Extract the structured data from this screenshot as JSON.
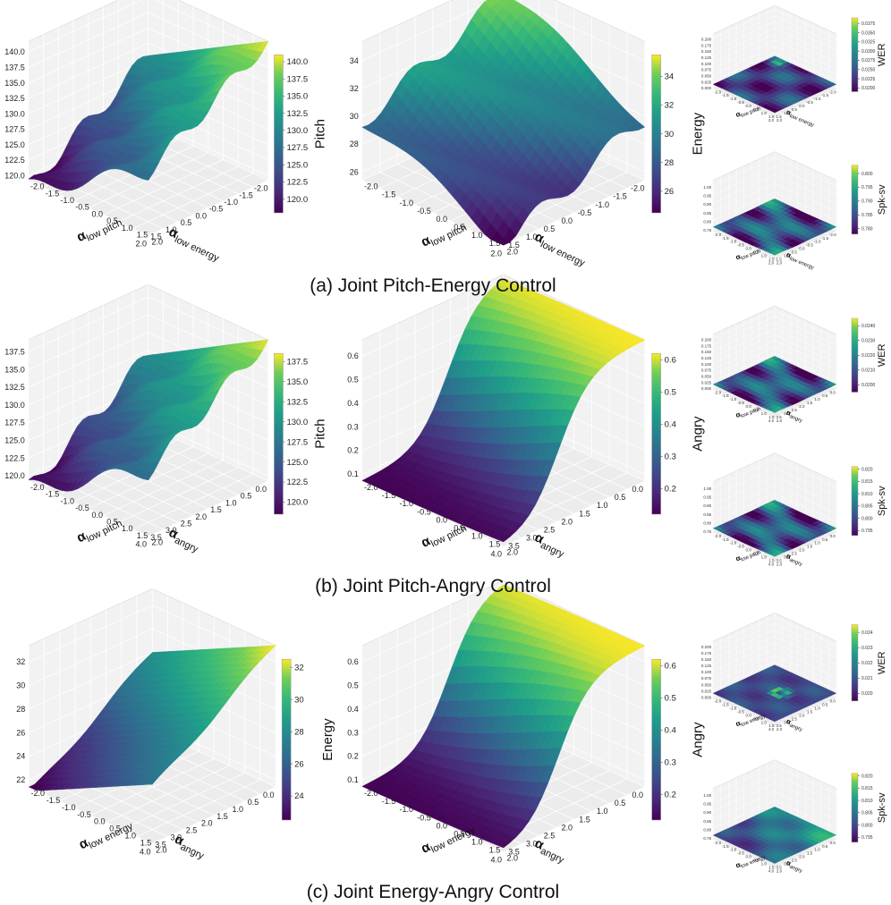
{
  "captions": [
    "(a) Joint Pitch-Energy Control",
    "(b) Joint Pitch-Angry Control",
    "(c) Joint Energy-Angry Control"
  ],
  "chart_data": [
    {
      "id": "a_pitch",
      "type": "surface",
      "row": 0,
      "col": 0,
      "size": "large",
      "zlabel": "Pitch",
      "xlabel": "α",
      "xlabel_sub": "low energy",
      "ylabel": "α",
      "ylabel_sub": "low pitch",
      "x_ticks": [
        "-2.0",
        "-1.5",
        "-1.0",
        "-0.5",
        "0.0",
        "0.5",
        "1.0",
        "1.5",
        "2.0"
      ],
      "y_ticks": [
        "2.0",
        "1.5",
        "1.0",
        "0.5",
        "0.0",
        "-0.5",
        "-1.0",
        "-1.5",
        "-2.0"
      ],
      "z_ticks": [
        "120.0",
        "122.5",
        "125.0",
        "127.5",
        "130.0",
        "132.5",
        "135.0",
        "137.5",
        "140.0"
      ],
      "zlim": [
        119,
        141
      ],
      "cbar_ticks": [
        "120.0",
        "122.5",
        "125.0",
        "127.5",
        "130.0",
        "132.5",
        "135.0",
        "137.5",
        "140.0"
      ],
      "cbar_range": [
        118,
        141
      ],
      "pattern": "diag"
    },
    {
      "id": "a_energy",
      "type": "surface",
      "row": 0,
      "col": 1,
      "size": "large",
      "zlabel": "Energy",
      "xlabel": "α",
      "xlabel_sub": "low energy",
      "ylabel": "α",
      "ylabel_sub": "low pitch",
      "x_ticks": [
        "-2.0",
        "-1.5",
        "-1.0",
        "-0.5",
        "0.0",
        "0.5",
        "1.0",
        "1.5",
        "2.0"
      ],
      "y_ticks": [
        "2.0",
        "1.5",
        "1.0",
        "0.5",
        "0.0",
        "-0.5",
        "-1.0",
        "-1.5",
        "-2.0"
      ],
      "z_ticks": [
        "26",
        "28",
        "30",
        "32",
        "34"
      ],
      "zlim": [
        24,
        36
      ],
      "cbar_ticks": [
        "26",
        "28",
        "30",
        "32",
        "34"
      ],
      "cbar_range": [
        24.5,
        35.5
      ],
      "pattern": "backhigh"
    },
    {
      "id": "a_wer",
      "type": "surface",
      "row": 0,
      "col": 2,
      "size": "small",
      "zlabel": "WER",
      "xlabel": "α",
      "xlabel_sub": "low energy",
      "ylabel": "α",
      "ylabel_sub": "low pitch",
      "x_ticks": [
        "-2.0",
        "-1.5",
        "-1.0",
        "-0.5",
        "0.0",
        "0.5",
        "1.0",
        "1.5",
        "2.0"
      ],
      "y_ticks": [
        "2.0",
        "1.5",
        "1.0",
        "0.5",
        "0.0",
        "-0.5",
        "-1.0",
        "-1.5",
        "-2.0"
      ],
      "z_ticks": [
        "0.000",
        "0.025",
        "0.050",
        "0.075",
        "0.100",
        "0.125",
        "0.150",
        "0.175",
        "0.200"
      ],
      "zlim": [
        0,
        0.2
      ],
      "cbar_ticks": [
        "0.0200",
        "0.0225",
        "0.0250",
        "0.0275",
        "0.0300",
        "0.0325",
        "0.0350",
        "0.0375"
      ],
      "cbar_range": [
        0.019,
        0.039
      ],
      "pattern": "flat"
    },
    {
      "id": "a_spk",
      "type": "surface",
      "row": 0,
      "col": 2,
      "size": "small",
      "zlabel": "Spk-sv",
      "xlabel": "α",
      "xlabel_sub": "low energy",
      "ylabel": "α",
      "ylabel_sub": "low pitch",
      "x_ticks": [
        "-2.0",
        "-1.5",
        "-1.0",
        "-0.5",
        "0.0",
        "0.5",
        "1.0",
        "1.5",
        "2.0"
      ],
      "y_ticks": [
        "2.0",
        "1.5",
        "1.0",
        "0.5",
        "0.0",
        "-0.5",
        "-1.0",
        "-1.5",
        "-2.0"
      ],
      "z_ticks": [
        "0.75",
        "0.80",
        "0.85",
        "0.90",
        "0.95",
        "1.00"
      ],
      "zlim": [
        0.75,
        1.0
      ],
      "cbar_ticks": [
        "0.780",
        "0.785",
        "0.790",
        "0.795",
        "0.800"
      ],
      "cbar_range": [
        0.778,
        0.803
      ],
      "pattern": "blob"
    },
    {
      "id": "b_pitch",
      "type": "surface",
      "row": 1,
      "col": 0,
      "size": "large",
      "zlabel": "Pitch",
      "xlabel": "α",
      "xlabel_sub": "angry",
      "ylabel": "α",
      "ylabel_sub": "low pitch",
      "x_ticks": [
        "0.0",
        "0.5",
        "1.0",
        "1.5",
        "2.0",
        "2.5",
        "3.0",
        "3.5",
        "4.0"
      ],
      "y_ticks": [
        "2.0",
        "1.5",
        "1.0",
        "0.5",
        "0.0",
        "-0.5",
        "-1.0",
        "-1.5",
        "-2.0"
      ],
      "z_ticks": [
        "120.0",
        "122.5",
        "125.0",
        "127.5",
        "130.0",
        "132.5",
        "135.0",
        "137.5"
      ],
      "zlim": [
        119,
        139
      ],
      "cbar_ticks": [
        "120.0",
        "122.5",
        "125.0",
        "127.5",
        "130.0",
        "132.5",
        "135.0",
        "137.5"
      ],
      "cbar_range": [
        118.5,
        138.5
      ],
      "pattern": "diag"
    },
    {
      "id": "b_angry",
      "type": "surface",
      "row": 1,
      "col": 1,
      "size": "large",
      "zlabel": "Angry",
      "xlabel": "α",
      "xlabel_sub": "angry",
      "ylabel": "α",
      "ylabel_sub": "low pitch",
      "x_ticks": [
        "0.0",
        "0.5",
        "1.0",
        "1.5",
        "2.0",
        "2.5",
        "3.0",
        "3.5",
        "4.0"
      ],
      "y_ticks": [
        "2.0",
        "1.5",
        "1.0",
        "0.5",
        "0.0",
        "-0.5",
        "-1.0",
        "-1.5",
        "-2.0"
      ],
      "z_ticks": [
        "0.1",
        "0.2",
        "0.3",
        "0.4",
        "0.5",
        "0.6"
      ],
      "zlim": [
        0.05,
        0.65
      ],
      "cbar_ticks": [
        "0.2",
        "0.3",
        "0.4",
        "0.5",
        "0.6"
      ],
      "cbar_range": [
        0.12,
        0.62
      ],
      "pattern": "sigmoid"
    },
    {
      "id": "b_wer",
      "type": "surface",
      "row": 1,
      "col": 2,
      "size": "small",
      "zlabel": "WER",
      "xlabel": "α",
      "xlabel_sub": "angry",
      "ylabel": "α",
      "ylabel_sub": "low pitch",
      "x_ticks": [
        "0.0",
        "0.5",
        "1.0",
        "1.5",
        "2.0",
        "2.5",
        "3.0",
        "3.5",
        "4.0"
      ],
      "y_ticks": [
        "2.0",
        "1.5",
        "1.0",
        "0.5",
        "0.0",
        "-0.5",
        "-1.0",
        "-1.5",
        "-2.0"
      ],
      "z_ticks": [
        "0.000",
        "0.025",
        "0.050",
        "0.075",
        "0.100",
        "0.125",
        "0.150",
        "0.175",
        "0.200"
      ],
      "zlim": [
        0,
        0.2
      ],
      "cbar_ticks": [
        "0.0200",
        "0.0210",
        "0.0220",
        "0.0230",
        "0.0240"
      ],
      "cbar_range": [
        0.0195,
        0.0245
      ],
      "pattern": "blob"
    },
    {
      "id": "b_spk",
      "type": "surface",
      "row": 1,
      "col": 2,
      "size": "small",
      "zlabel": "Spk-sv",
      "xlabel": "α",
      "xlabel_sub": "angry",
      "ylabel": "α",
      "ylabel_sub": "low pitch",
      "x_ticks": [
        "0.0",
        "0.5",
        "1.0",
        "1.5",
        "2.0",
        "2.5",
        "3.0",
        "3.5",
        "4.0"
      ],
      "y_ticks": [
        "2.0",
        "1.5",
        "1.0",
        "0.5",
        "0.0",
        "-0.5",
        "-1.0",
        "-1.5",
        "-2.0"
      ],
      "z_ticks": [
        "0.75",
        "0.80",
        "0.85",
        "0.90",
        "0.95",
        "1.00"
      ],
      "zlim": [
        0.75,
        1.0
      ],
      "cbar_ticks": [
        "0.795",
        "0.800",
        "0.805",
        "0.810",
        "0.815",
        "0.820"
      ],
      "cbar_range": [
        0.793,
        0.821
      ],
      "pattern": "blob"
    },
    {
      "id": "c_energy",
      "type": "surface",
      "row": 2,
      "col": 0,
      "size": "large",
      "zlabel": "Energy",
      "xlabel": "α",
      "xlabel_sub": "angry",
      "ylabel": "α",
      "ylabel_sub": "low energy",
      "x_ticks": [
        "0.0",
        "0.5",
        "1.0",
        "1.5",
        "2.0",
        "2.5",
        "3.0",
        "3.5",
        "4.0"
      ],
      "y_ticks": [
        "2.0",
        "1.5",
        "1.0",
        "0.5",
        "0.0",
        "-0.5",
        "-1.0",
        "-1.5",
        "-2.0"
      ],
      "z_ticks": [
        "22",
        "24",
        "26",
        "28",
        "30",
        "32"
      ],
      "zlim": [
        21.5,
        33
      ],
      "cbar_ticks": [
        "24",
        "26",
        "28",
        "30",
        "32"
      ],
      "cbar_range": [
        22.5,
        32.5
      ],
      "pattern": "diagsoft"
    },
    {
      "id": "c_angry",
      "type": "surface",
      "row": 2,
      "col": 1,
      "size": "large",
      "zlabel": "Angry",
      "xlabel": "α",
      "xlabel_sub": "angry",
      "ylabel": "α",
      "ylabel_sub": "low energy",
      "x_ticks": [
        "0.0",
        "0.5",
        "1.0",
        "1.5",
        "2.0",
        "2.5",
        "3.0",
        "3.5",
        "4.0"
      ],
      "y_ticks": [
        "2.0",
        "1.5",
        "1.0",
        "0.5",
        "0.0",
        "-0.5",
        "-1.0",
        "-1.5",
        "-2.0"
      ],
      "z_ticks": [
        "0.1",
        "0.2",
        "0.3",
        "0.4",
        "0.5",
        "0.6"
      ],
      "zlim": [
        0.05,
        0.65
      ],
      "cbar_ticks": [
        "0.2",
        "0.3",
        "0.4",
        "0.5",
        "0.6"
      ],
      "cbar_range": [
        0.12,
        0.62
      ],
      "pattern": "sigmoid"
    },
    {
      "id": "c_wer",
      "type": "surface",
      "row": 2,
      "col": 2,
      "size": "small",
      "zlabel": "WER",
      "xlabel": "α",
      "xlabel_sub": "angry",
      "ylabel": "α",
      "ylabel_sub": "low energy",
      "x_ticks": [
        "0.0",
        "0.5",
        "1.0",
        "1.5",
        "2.0",
        "2.5",
        "3.0",
        "3.5",
        "4.0"
      ],
      "y_ticks": [
        "2.0",
        "1.5",
        "1.0",
        "0.5",
        "0.0",
        "-0.5",
        "-1.0",
        "-1.5",
        "-2.0"
      ],
      "z_ticks": [
        "0.000",
        "0.025",
        "0.050",
        "0.075",
        "0.100",
        "0.125",
        "0.150",
        "0.175",
        "0.200"
      ],
      "zlim": [
        0,
        0.2
      ],
      "cbar_ticks": [
        "0.020",
        "0.021",
        "0.022",
        "0.023",
        "0.024"
      ],
      "cbar_range": [
        0.0195,
        0.0245
      ],
      "pattern": "ring"
    },
    {
      "id": "c_spk",
      "type": "surface",
      "row": 2,
      "col": 2,
      "size": "small",
      "zlabel": "Spk-sv",
      "xlabel": "α",
      "xlabel_sub": "angry",
      "ylabel": "α",
      "ylabel_sub": "low energy",
      "x_ticks": [
        "0.0",
        "0.5",
        "1.0",
        "1.5",
        "2.0",
        "2.5",
        "3.0",
        "3.5",
        "4.0"
      ],
      "y_ticks": [
        "2.0",
        "1.5",
        "1.0",
        "0.5",
        "0.0",
        "-0.5",
        "-1.0",
        "-1.5",
        "-2.0"
      ],
      "z_ticks": [
        "0.75",
        "0.80",
        "0.85",
        "0.90",
        "0.95",
        "1.00"
      ],
      "zlim": [
        0.75,
        1.0
      ],
      "cbar_ticks": [
        "0.795",
        "0.800",
        "0.805",
        "0.810",
        "0.815",
        "0.820"
      ],
      "cbar_range": [
        0.793,
        0.821
      ],
      "pattern": "gradient"
    }
  ]
}
